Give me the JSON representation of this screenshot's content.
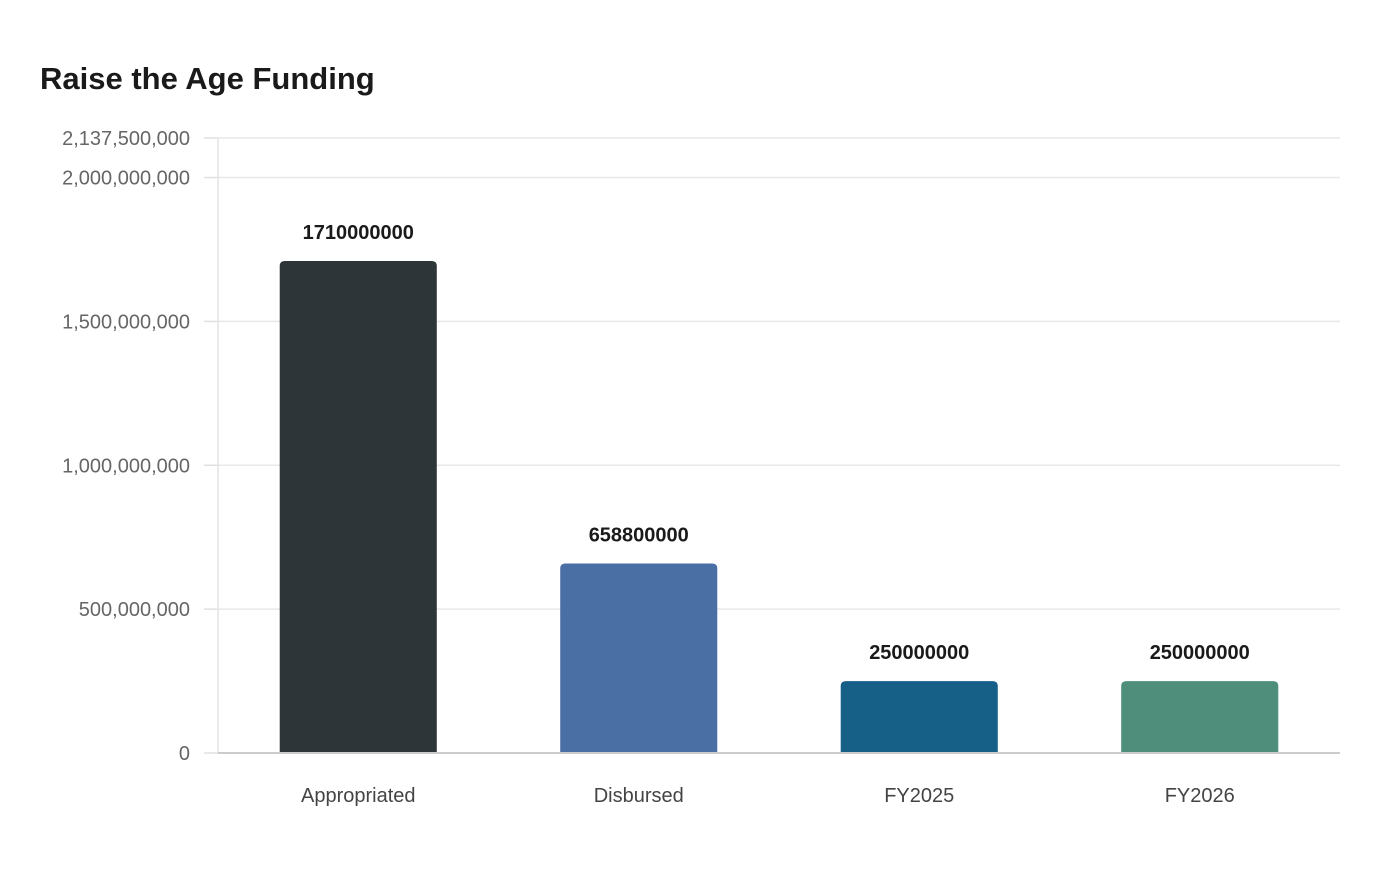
{
  "chart_data": {
    "type": "bar",
    "title": "Raise the Age Funding",
    "xlabel": "",
    "ylabel": "",
    "categories": [
      "Appropriated",
      "Disbursed",
      "FY2025",
      "FY2026"
    ],
    "values": [
      1710000000,
      658800000,
      250000000,
      250000000
    ],
    "data_labels": [
      "1710000000",
      "658800000",
      "250000000",
      "250000000"
    ],
    "colors": [
      "#2e3538",
      "#4a6fa5",
      "#166088",
      "#4f8e7a"
    ],
    "ylim": [
      0,
      2137500000
    ],
    "yticks": [
      0,
      500000000,
      1000000000,
      1500000000,
      2000000000,
      2137500000
    ],
    "ytick_labels": [
      "0",
      "500,000,000",
      "1,000,000,000",
      "1,500,000,000",
      "2,000,000,000",
      "2,137,500,000"
    ],
    "grid": true,
    "legend": "none"
  }
}
